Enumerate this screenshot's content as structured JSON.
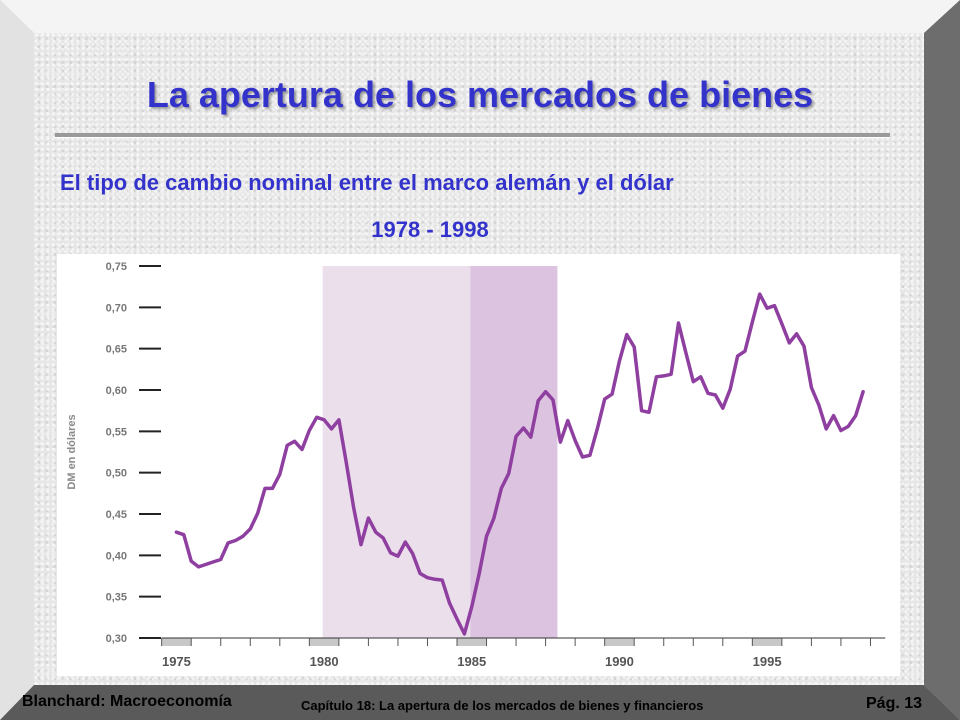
{
  "slide": {
    "title": "La apertura de los mercados de bienes",
    "subtitle": "El tipo de cambio nominal entre el marco alemán y el dólar",
    "years": "1978 - 1998"
  },
  "footer": {
    "left": "Blanchard: Macroeconomía",
    "center": "Capítulo 18:  La apertura de los mercados de bienes y financieros",
    "page": "Pág. 13"
  },
  "colors": {
    "title": "#3333cc",
    "line": "#8e3fa0",
    "band_light": "#ecdfec",
    "band_dark": "#dcc3df",
    "year_marker": "#c8c8c8"
  },
  "chart_data": {
    "type": "line",
    "title": "",
    "xlabel": "",
    "ylabel": "DM en dólares",
    "xlim": [
      1973.8,
      1999.5
    ],
    "ylim": [
      0.3,
      0.75
    ],
    "y_ticks": [
      0.3,
      0.35,
      0.4,
      0.45,
      0.5,
      0.55,
      0.6,
      0.65,
      0.7,
      0.75
    ],
    "y_tick_labels": [
      "0,30",
      "0,35",
      "0,40",
      "0,45",
      "0,50",
      "0,55",
      "0,60",
      "0,65",
      "0,70",
      "0,75"
    ],
    "x_tick_labels": [
      "1975",
      "1980",
      "1985",
      "1990",
      "1995"
    ],
    "x_ticks": [
      1975,
      1980,
      1985,
      1990,
      1995
    ],
    "shaded_periods": [
      {
        "start": 1979.95,
        "end": 1984.95,
        "shade": "light"
      },
      {
        "start": 1984.95,
        "end": 1987.9,
        "shade": "dark"
      }
    ],
    "grid": false,
    "series": [
      {
        "name": "",
        "x": [
          1975.0,
          1975.25,
          1975.5,
          1975.75,
          1976.0,
          1976.25,
          1976.5,
          1976.75,
          1977.0,
          1977.25,
          1977.5,
          1977.75,
          1978.0,
          1978.25,
          1978.5,
          1978.75,
          1979.0,
          1979.25,
          1979.5,
          1979.75,
          1980.0,
          1980.25,
          1980.5,
          1980.75,
          1981.0,
          1981.25,
          1981.5,
          1981.75,
          1982.0,
          1982.25,
          1982.5,
          1982.75,
          1983.0,
          1983.25,
          1983.5,
          1983.75,
          1984.0,
          1984.25,
          1984.5,
          1984.75,
          1985.0,
          1985.25,
          1985.5,
          1985.75,
          1986.0,
          1986.25,
          1986.5,
          1986.75,
          1987.0,
          1987.25,
          1987.5,
          1987.75,
          1988.0,
          1988.25,
          1988.5,
          1988.75,
          1989.0,
          1989.25,
          1989.5,
          1989.75,
          1990.0,
          1990.25,
          1990.5,
          1990.75,
          1991.0,
          1991.25,
          1991.5,
          1991.75,
          1992.0,
          1992.25,
          1992.5,
          1992.75,
          1993.0,
          1993.25,
          1993.5,
          1993.75,
          1994.0,
          1994.25,
          1994.5,
          1994.75,
          1995.0,
          1995.25,
          1995.5,
          1995.75,
          1996.0,
          1996.25,
          1996.5,
          1996.75,
          1997.0,
          1997.25,
          1997.5,
          1997.75,
          1998.0,
          1998.25
        ],
        "y": [
          0.428,
          0.425,
          0.393,
          0.386,
          0.389,
          0.392,
          0.395,
          0.415,
          0.418,
          0.423,
          0.432,
          0.451,
          0.481,
          0.481,
          0.498,
          0.533,
          0.538,
          0.528,
          0.551,
          0.567,
          0.564,
          0.553,
          0.564,
          0.512,
          0.458,
          0.413,
          0.445,
          0.428,
          0.421,
          0.403,
          0.399,
          0.416,
          0.402,
          0.378,
          0.373,
          0.371,
          0.37,
          0.342,
          0.323,
          0.305,
          0.338,
          0.378,
          0.423,
          0.445,
          0.481,
          0.499,
          0.544,
          0.554,
          0.543,
          0.587,
          0.598,
          0.588,
          0.537,
          0.563,
          0.539,
          0.519,
          0.521,
          0.553,
          0.589,
          0.595,
          0.635,
          0.667,
          0.652,
          0.575,
          0.573,
          0.616,
          0.617,
          0.619,
          0.681,
          0.645,
          0.61,
          0.616,
          0.596,
          0.594,
          0.578,
          0.601,
          0.641,
          0.647,
          0.682,
          0.716,
          0.699,
          0.702,
          0.68,
          0.657,
          0.668,
          0.653,
          0.603,
          0.582,
          0.553,
          0.569,
          0.551,
          0.556,
          0.569,
          0.598
        ]
      }
    ]
  }
}
